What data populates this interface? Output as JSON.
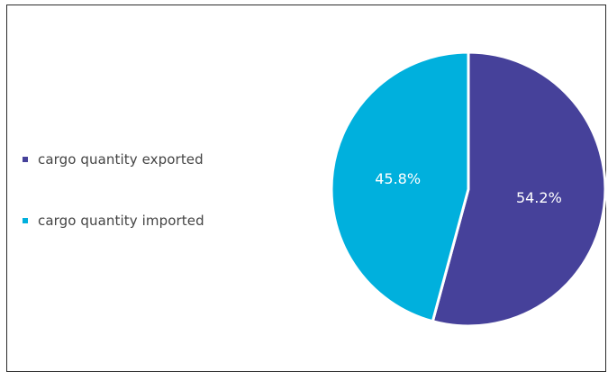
{
  "chart_data": {
    "type": "pie",
    "title": "",
    "slices": [
      {
        "name": "cargo quantity exported",
        "value": 54.2,
        "label": "54.2%",
        "color": "#46419a"
      },
      {
        "name": "cargo quantity imported",
        "value": 45.8,
        "label": "45.8%",
        "color": "#00b0dd"
      }
    ],
    "legend_position": "left",
    "slice_border_color": "#ffffff",
    "start_angle": "top",
    "direction": "clockwise"
  }
}
